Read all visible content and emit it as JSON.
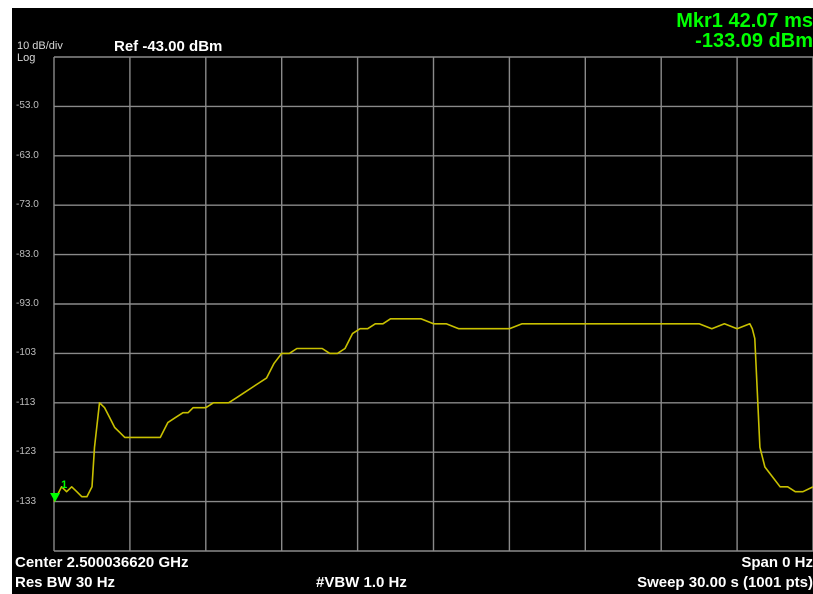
{
  "header": {
    "scale": "10 dB/div",
    "scale_type": "Log",
    "ref_level": "Ref -43.00 dBm",
    "marker_line1": "Mkr1 42.07 ms",
    "marker_line2": "-133.09 dBm"
  },
  "footer": {
    "center": "Center 2.500036620 GHz",
    "span": "Span 0 Hz",
    "res_bw": "Res BW 30 Hz",
    "vbw": "#VBW 1.0 Hz",
    "sweep": "Sweep  30.00 s (1001 pts)"
  },
  "colors": {
    "background": "#000000",
    "grid": "#8a8a8a",
    "trace": "#c8c000",
    "marker": "#00ff00"
  },
  "chart_data": {
    "type": "line",
    "xlabel": "",
    "ylabel": "",
    "xlim": [
      0,
      30
    ],
    "x_unit": "s",
    "ylim": [
      -143,
      -43
    ],
    "y_ticks": [
      "-53.0",
      "-63.0",
      "-73.0",
      "-83.0",
      "-93.0",
      "-103",
      "-113",
      "-123",
      "-133"
    ],
    "grid": true,
    "marker": {
      "name": "1",
      "x": 0.042,
      "y": -133.09
    },
    "series": [
      {
        "x": [
          0,
          0.1,
          0.3,
          0.5,
          0.7,
          0.9,
          1.1,
          1.3,
          1.5,
          1.6,
          1.8,
          2.0,
          2.2,
          2.4,
          2.6,
          2.8,
          3.0,
          3.3,
          3.6,
          3.9,
          4.2,
          4.5,
          4.8,
          5.1,
          5.3,
          5.5,
          5.7,
          6.0,
          6.3,
          6.6,
          6.9,
          7.2,
          7.5,
          7.8,
          8.1,
          8.4,
          8.7,
          9.0,
          9.3,
          9.6,
          9.8,
          10.0,
          10.3,
          10.6,
          10.9,
          11.2,
          11.5,
          11.8,
          12.1,
          12.4,
          12.7,
          13.0,
          13.3,
          13.6,
          13.9,
          14.2,
          14.5,
          15.0,
          15.5,
          16.0,
          16.5,
          17.0,
          17.5,
          18.0,
          18.5,
          19.0,
          19.5,
          20.0,
          20.5,
          21.0,
          21.5,
          22.0,
          22.5,
          23.0,
          23.5,
          24.0,
          24.5,
          25.0,
          25.5,
          26.0,
          26.5,
          27.0,
          27.5,
          27.6,
          27.7,
          27.9,
          28.1,
          28.4,
          28.7,
          29.0,
          29.3,
          29.6,
          30.0
        ],
        "y": [
          -133,
          -132,
          -130,
          -131,
          -130,
          -131,
          -132,
          -132,
          -130,
          -122,
          -113,
          -114,
          -116,
          -118,
          -119,
          -120,
          -120,
          -120,
          -120,
          -120,
          -120,
          -117,
          -116,
          -115,
          -115,
          -114,
          -114,
          -114,
          -113,
          -113,
          -113,
          -112,
          -111,
          -110,
          -109,
          -108,
          -105,
          -103,
          -103,
          -102,
          -102,
          -102,
          -102,
          -102,
          -103,
          -103,
          -102,
          -99,
          -98,
          -98,
          -97,
          -97,
          -96,
          -96,
          -96,
          -96,
          -96,
          -97,
          -97,
          -98,
          -98,
          -98,
          -98,
          -98,
          -97,
          -97,
          -97,
          -97,
          -97,
          -97,
          -97,
          -97,
          -97,
          -97,
          -97,
          -97,
          -97,
          -97,
          -97,
          -98,
          -97,
          -98,
          -97,
          -98,
          -100,
          -122,
          -126,
          -128,
          -130,
          -130,
          -131,
          -131,
          -130
        ]
      }
    ]
  }
}
